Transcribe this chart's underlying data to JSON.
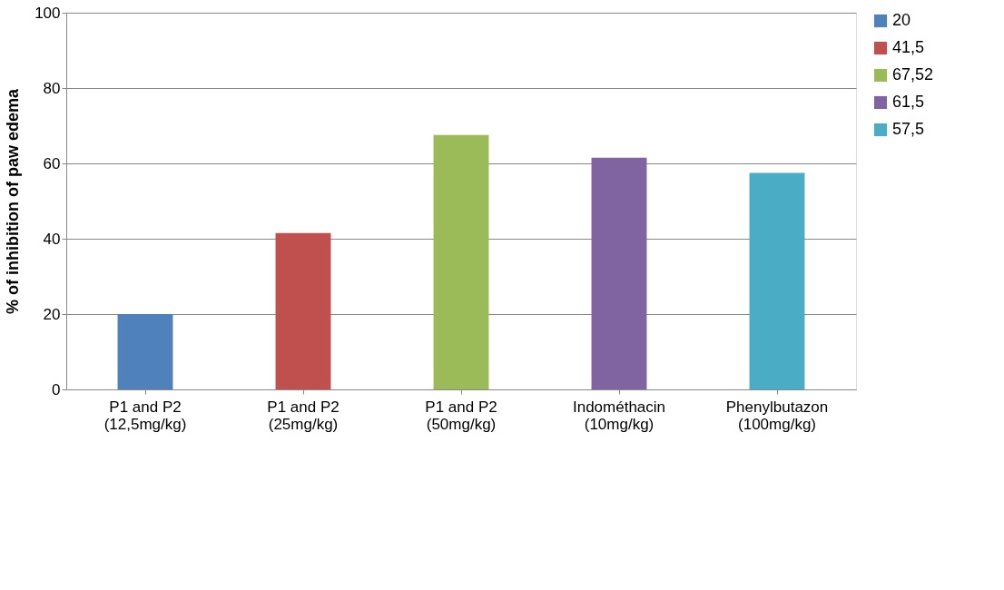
{
  "chart_data": {
    "type": "bar",
    "ylabel": "% of inhibition of paw edema",
    "categories": [
      "P1 and P2\n(12,5mg/kg)",
      "P1 and P2\n(25mg/kg)",
      "P1 and P2\n(50mg/kg)",
      "Indométhacin\n(10mg/kg)",
      "Phenylbutazon\n(100mg/kg)"
    ],
    "series": [
      {
        "name": "20",
        "color": "#4f81bd",
        "values": [
          20,
          null,
          null,
          null,
          null
        ]
      },
      {
        "name": "41,5",
        "color": "#c0504d",
        "values": [
          null,
          41.5,
          null,
          null,
          null
        ]
      },
      {
        "name": "67,52",
        "color": "#9bbb59",
        "values": [
          null,
          null,
          67.52,
          null,
          null
        ]
      },
      {
        "name": "61,5",
        "color": "#8064a2",
        "values": [
          null,
          null,
          null,
          61.5,
          null
        ]
      },
      {
        "name": "57,5",
        "color": "#4bacc6",
        "values": [
          null,
          null,
          null,
          null,
          57.5
        ]
      }
    ],
    "ylim": [
      0,
      100
    ],
    "yticks": [
      0,
      20,
      40,
      60,
      80,
      100
    ],
    "grid": "y",
    "legend": "right"
  }
}
